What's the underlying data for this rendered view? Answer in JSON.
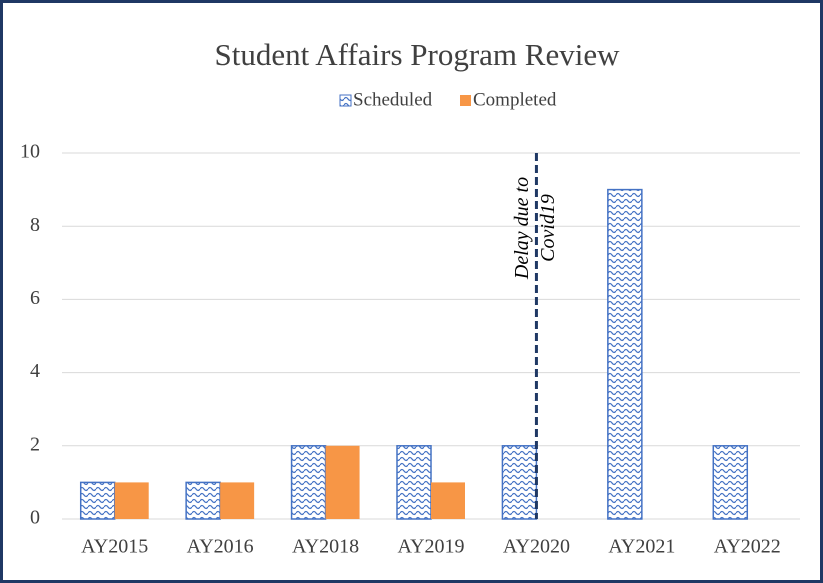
{
  "chart_data": {
    "type": "bar",
    "title": "Student Affairs Program Review",
    "categories": [
      "AY2015",
      "AY2016",
      "AY2018",
      "AY2019",
      "AY2020",
      "AY2021",
      "AY2022"
    ],
    "series": [
      {
        "name": "Scheduled",
        "color": "#4472c4",
        "pattern": "wave",
        "values": [
          1,
          1,
          2,
          2,
          2,
          9,
          2
        ]
      },
      {
        "name": "Completed",
        "color": "#f79646",
        "values": [
          1,
          1,
          2,
          1,
          0,
          0,
          0
        ]
      }
    ],
    "ylim": [
      0,
      10
    ],
    "yticks": [
      0,
      2,
      4,
      6,
      8,
      10
    ],
    "grid": true,
    "legend": "top",
    "annotation": {
      "category": "AY2020",
      "lines": [
        "Delay due to",
        "Covid19"
      ],
      "color": "#1f3864"
    }
  }
}
